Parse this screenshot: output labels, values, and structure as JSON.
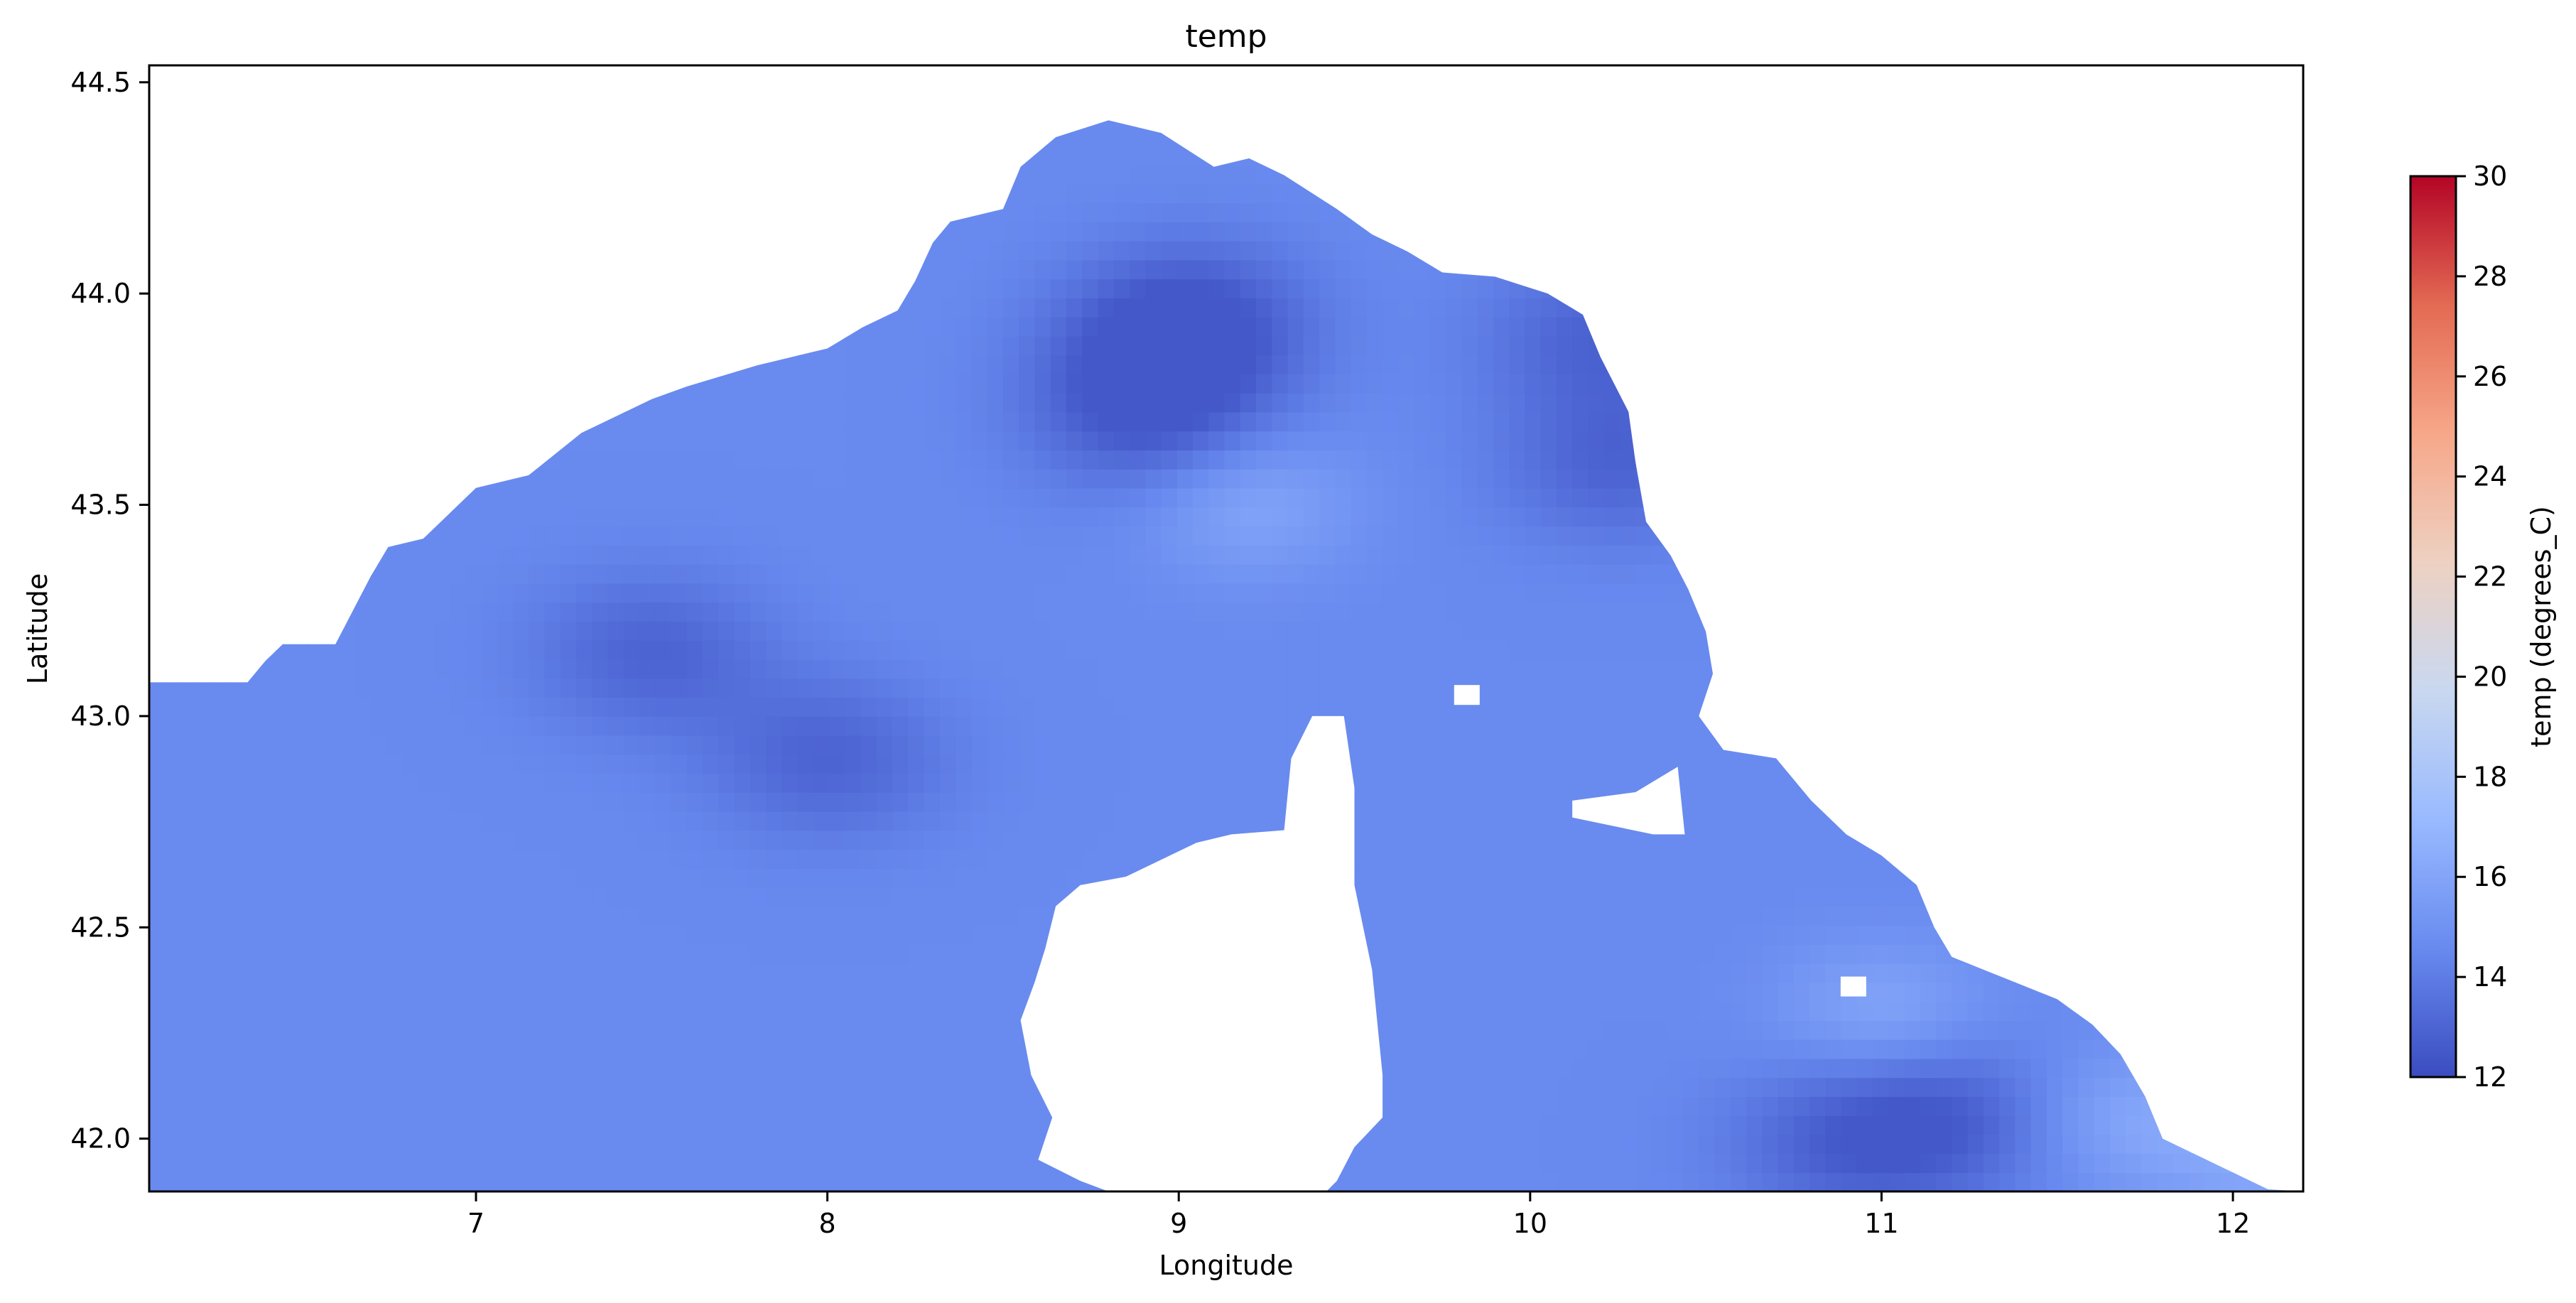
{
  "chart_data": {
    "type": "heatmap",
    "title": "temp",
    "xlabel": "Longitude",
    "ylabel": "Latitude",
    "xlim": [
      6.07,
      12.2
    ],
    "ylim": [
      41.875,
      44.54
    ],
    "xticks": [
      7,
      8,
      9,
      10,
      11,
      12
    ],
    "xtick_labels": [
      "7",
      "8",
      "9",
      "10",
      "11",
      "12"
    ],
    "yticks": [
      42.0,
      42.5,
      43.0,
      43.5,
      44.0,
      44.5
    ],
    "ytick_labels": [
      "42.0",
      "42.5",
      "43.0",
      "43.5",
      "44.0",
      "44.5"
    ],
    "colormap": "coolwarm",
    "colormap_stops": [
      "#3b4cc0",
      "#688aef",
      "#99baff",
      "#c9d8f0",
      "#edd1c2",
      "#f7a789",
      "#e36a53",
      "#b40426"
    ],
    "colorbar": {
      "label": "temp (degrees_C)",
      "min": 12,
      "max": 30,
      "ticks": [
        12,
        14,
        16,
        18,
        20,
        22,
        24,
        26,
        28,
        30
      ],
      "tick_labels": [
        "12",
        "14",
        "16",
        "18",
        "20",
        "22",
        "24",
        "26",
        "28",
        "30"
      ]
    },
    "value_range_shown": [
      12.5,
      17
    ],
    "coast_north": [
      [
        6.07,
        43.08
      ],
      [
        6.35,
        43.08
      ],
      [
        6.4,
        43.13
      ],
      [
        6.45,
        43.17
      ],
      [
        6.6,
        43.17
      ],
      [
        6.65,
        43.25
      ],
      [
        6.7,
        43.33
      ],
      [
        6.75,
        43.4
      ],
      [
        6.85,
        43.42
      ],
      [
        6.9,
        43.46
      ],
      [
        7.0,
        43.54
      ],
      [
        7.15,
        43.57
      ],
      [
        7.3,
        43.67
      ],
      [
        7.4,
        43.71
      ],
      [
        7.5,
        43.75
      ],
      [
        7.6,
        43.78
      ],
      [
        7.8,
        43.83
      ],
      [
        8.0,
        43.87
      ],
      [
        8.1,
        43.92
      ],
      [
        8.2,
        43.96
      ],
      [
        8.25,
        44.03
      ],
      [
        8.3,
        44.12
      ],
      [
        8.35,
        44.17
      ],
      [
        8.5,
        44.2
      ],
      [
        8.55,
        44.3
      ],
      [
        8.65,
        44.37
      ],
      [
        8.8,
        44.41
      ],
      [
        8.95,
        44.38
      ],
      [
        9.1,
        44.3
      ],
      [
        9.2,
        44.32
      ],
      [
        9.3,
        44.28
      ],
      [
        9.45,
        44.2
      ],
      [
        9.55,
        44.14
      ],
      [
        9.65,
        44.1
      ],
      [
        9.75,
        44.05
      ],
      [
        9.9,
        44.04
      ],
      [
        10.05,
        44.0
      ],
      [
        10.15,
        43.95
      ],
      [
        10.2,
        43.85
      ],
      [
        10.28,
        43.72
      ],
      [
        10.3,
        43.6
      ],
      [
        10.33,
        43.46
      ],
      [
        10.4,
        43.38
      ],
      [
        10.45,
        43.3
      ],
      [
        10.5,
        43.2
      ],
      [
        10.52,
        43.1
      ],
      [
        10.48,
        43.0
      ],
      [
        10.55,
        42.92
      ],
      [
        10.7,
        42.9
      ],
      [
        10.8,
        42.8
      ],
      [
        10.9,
        42.72
      ],
      [
        11.0,
        42.67
      ],
      [
        11.1,
        42.6
      ],
      [
        11.15,
        42.5
      ],
      [
        11.2,
        42.43
      ],
      [
        11.35,
        42.38
      ],
      [
        11.5,
        42.33
      ],
      [
        11.6,
        42.27
      ],
      [
        11.68,
        42.2
      ],
      [
        11.75,
        42.1
      ],
      [
        11.8,
        42.0
      ],
      [
        11.9,
        41.96
      ],
      [
        12.0,
        41.92
      ],
      [
        12.1,
        41.88
      ],
      [
        12.2,
        41.875
      ]
    ],
    "corsica_outline": [
      [
        8.59,
        42.37
      ],
      [
        8.62,
        42.45
      ],
      [
        8.65,
        42.55
      ],
      [
        8.72,
        42.6
      ],
      [
        8.85,
        42.62
      ],
      [
        9.05,
        42.7
      ],
      [
        9.15,
        42.72
      ],
      [
        9.3,
        42.73
      ],
      [
        9.32,
        42.9
      ],
      [
        9.38,
        43.0
      ],
      [
        9.47,
        43.0
      ],
      [
        9.5,
        42.83
      ],
      [
        9.5,
        42.6
      ],
      [
        9.55,
        42.4
      ],
      [
        9.58,
        42.15
      ],
      [
        9.58,
        42.05
      ],
      [
        9.5,
        41.98
      ],
      [
        9.45,
        41.9
      ],
      [
        9.42,
        41.875
      ],
      [
        8.8,
        41.875
      ],
      [
        8.72,
        41.9
      ],
      [
        8.6,
        41.95
      ],
      [
        8.64,
        42.05
      ],
      [
        8.58,
        42.15
      ],
      [
        8.55,
        42.28
      ],
      [
        8.59,
        42.37
      ]
    ],
    "elba_outline": [
      [
        10.12,
        42.76
      ],
      [
        10.12,
        42.8
      ],
      [
        10.3,
        42.82
      ],
      [
        10.42,
        42.88
      ],
      [
        10.44,
        42.72
      ],
      [
        10.35,
        42.72
      ],
      [
        10.12,
        42.76
      ]
    ],
    "small_islands": [
      [
        9.82,
        43.05
      ],
      [
        10.92,
        42.36
      ]
    ],
    "cold_core": [
      [
        8.95,
        43.85
      ],
      [
        9.05,
        43.95
      ],
      [
        8.9,
        43.7
      ],
      [
        7.5,
        43.15
      ],
      [
        8.0,
        42.9
      ],
      [
        10.2,
        43.9
      ],
      [
        10.25,
        43.6
      ],
      [
        11.2,
        42.05
      ],
      [
        10.9,
        41.99
      ]
    ],
    "warm_core": [
      [
        9.2,
        43.5
      ],
      [
        11.0,
        42.3
      ],
      [
        11.7,
        42.05
      ],
      [
        12.1,
        41.95
      ]
    ]
  }
}
